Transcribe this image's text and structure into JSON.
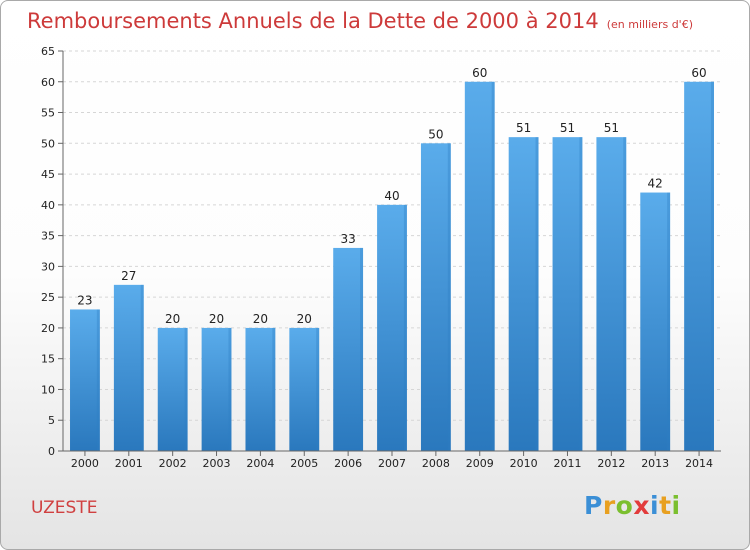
{
  "title": "Remboursements Annuels de la Dette de 2000 à 2014",
  "subtitle": "(en milliers d'€)",
  "commune": "UZESTE",
  "logo": {
    "letters": [
      "P",
      "r",
      "o",
      "x",
      "i",
      "t",
      "i"
    ],
    "colors": [
      "#3b8fd6",
      "#e8a020",
      "#7bbf2f",
      "#e23b3b",
      "#3b8fd6",
      "#e8a020",
      "#7bbf2f"
    ]
  },
  "colors": {
    "bar": "#4a9fe0",
    "bar_dark": "#2e7fc4",
    "title": "#cd3a3a"
  },
  "chart_data": {
    "type": "bar",
    "categories": [
      "2000",
      "2001",
      "2002",
      "2003",
      "2004",
      "2005",
      "2006",
      "2007",
      "2008",
      "2009",
      "2010",
      "2011",
      "2012",
      "2013",
      "2014"
    ],
    "values": [
      23,
      27,
      20,
      20,
      20,
      20,
      33,
      40,
      50,
      60,
      51,
      51,
      51,
      42,
      60
    ],
    "ylim": [
      0,
      65
    ],
    "yticks": [
      0,
      5,
      10,
      15,
      20,
      25,
      30,
      35,
      40,
      45,
      50,
      55,
      60,
      65
    ],
    "grid": true,
    "xlabel": "",
    "ylabel": ""
  }
}
